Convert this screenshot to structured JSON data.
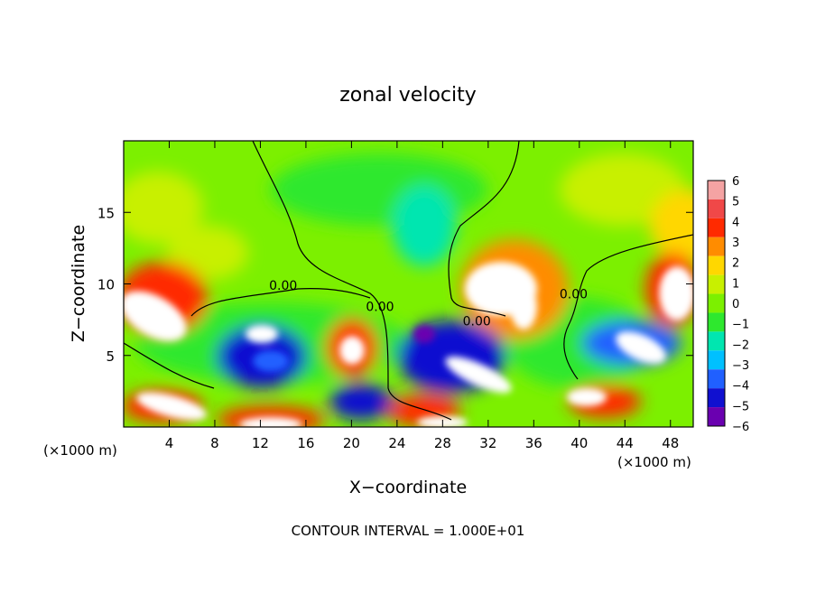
{
  "chart_data": {
    "type": "heatmap",
    "title": "zonal velocity",
    "xlabel": "X−coordinate",
    "ylabel": "Z−coordinate",
    "x_unit_left": "(×1000 m)",
    "x_unit_right": "(×1000 m)",
    "footer": "CONTOUR INTERVAL = 1.000E+01",
    "xlim": [
      0,
      50
    ],
    "ylim": [
      0,
      20
    ],
    "x_ticks": [
      4,
      8,
      12,
      16,
      20,
      24,
      28,
      32,
      36,
      40,
      44,
      48
    ],
    "x_tick_labels": [
      "4",
      "8",
      "12",
      "16",
      "20",
      "24",
      "28",
      "32",
      "36",
      "40",
      "44",
      "48"
    ],
    "y_ticks": [
      5,
      10,
      15
    ],
    "y_tick_labels": [
      "5",
      "10",
      "15"
    ],
    "grid": false,
    "colorbar": {
      "levels": [
        6,
        5,
        4,
        3,
        2,
        1,
        0,
        -1,
        -2,
        -3,
        -4,
        -5,
        -6
      ],
      "labels": [
        "6",
        "5",
        "4",
        "3",
        "2",
        "1",
        "0",
        "−1",
        "−2",
        "−3",
        "−4",
        "−5",
        "−6"
      ],
      "colors": [
        "#f4a3a3",
        "#f04848",
        "#ff2a00",
        "#ff8c00",
        "#ffd700",
        "#c8f000",
        "#7cf000",
        "#2ee82e",
        "#00e6b0",
        "#00c0ff",
        "#2060ff",
        "#1010d0",
        "#6a00b0"
      ]
    },
    "contour_labels": [
      {
        "text": "0.00",
        "x": 14.0,
        "y": 9.6
      },
      {
        "text": "0.00",
        "x": 22.5,
        "y": 8.1
      },
      {
        "text": "0.00",
        "x": 31.0,
        "y": 7.1
      },
      {
        "text": "0.00",
        "x": 39.5,
        "y": 9.0
      }
    ]
  }
}
